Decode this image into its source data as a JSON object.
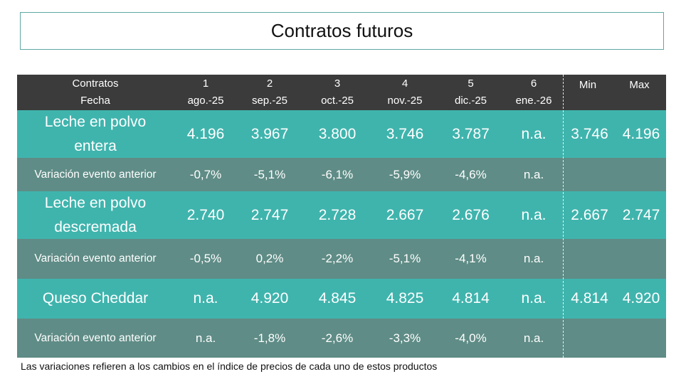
{
  "title": "Contratos futuros",
  "header": {
    "col0_line1": "Contratos",
    "col0_line2": "Fecha",
    "contracts": [
      {
        "num": "1",
        "date": "ago.-25"
      },
      {
        "num": "2",
        "date": "sep.-25"
      },
      {
        "num": "3",
        "date": "oct.-25"
      },
      {
        "num": "4",
        "date": "nov.-25"
      },
      {
        "num": "5",
        "date": "dic.-25"
      },
      {
        "num": "6",
        "date": "ene.-26"
      }
    ],
    "min_label": "Min",
    "max_label": "Max"
  },
  "rows": [
    {
      "label": "Leche en polvo entera",
      "values": [
        "4.196",
        "3.967",
        "3.800",
        "3.746",
        "3.787",
        "n.a."
      ],
      "min": "3.746",
      "max": "4.196"
    },
    {
      "label": "Variación evento anterior",
      "values": [
        "-0,7%",
        "-5,1%",
        "-6,1%",
        "-5,9%",
        "-4,6%",
        "n.a."
      ],
      "min": "",
      "max": ""
    },
    {
      "label": "Leche en polvo descremada",
      "values": [
        "2.740",
        "2.747",
        "2.728",
        "2.667",
        "2.676",
        "n.a."
      ],
      "min": "2.667",
      "max": "2.747"
    },
    {
      "label": "Variación evento anterior",
      "values": [
        "-0,5%",
        "0,2%",
        "-2,2%",
        "-5,1%",
        "-4,1%",
        "n.a."
      ],
      "min": "",
      "max": ""
    },
    {
      "label": "Queso Cheddar",
      "values": [
        "n.a.",
        "4.920",
        "4.845",
        "4.825",
        "4.814",
        "n.a."
      ],
      "min": "4.814",
      "max": "4.920"
    },
    {
      "label": "Variación evento anterior",
      "values": [
        "n.a.",
        "-1,8%",
        "-2,6%",
        "-3,3%",
        "-4,0%",
        "n.a."
      ],
      "min": "",
      "max": ""
    }
  ],
  "footnote": "Las variaciones refieren a los cambios en el índice de precios de cada uno de estos productos",
  "colors": {
    "header_bg": "#3b3b3b",
    "product_row_bg": "#3fb4ad",
    "variation_row_bg": "#5f8c86",
    "title_border": "#5fa8a3"
  }
}
